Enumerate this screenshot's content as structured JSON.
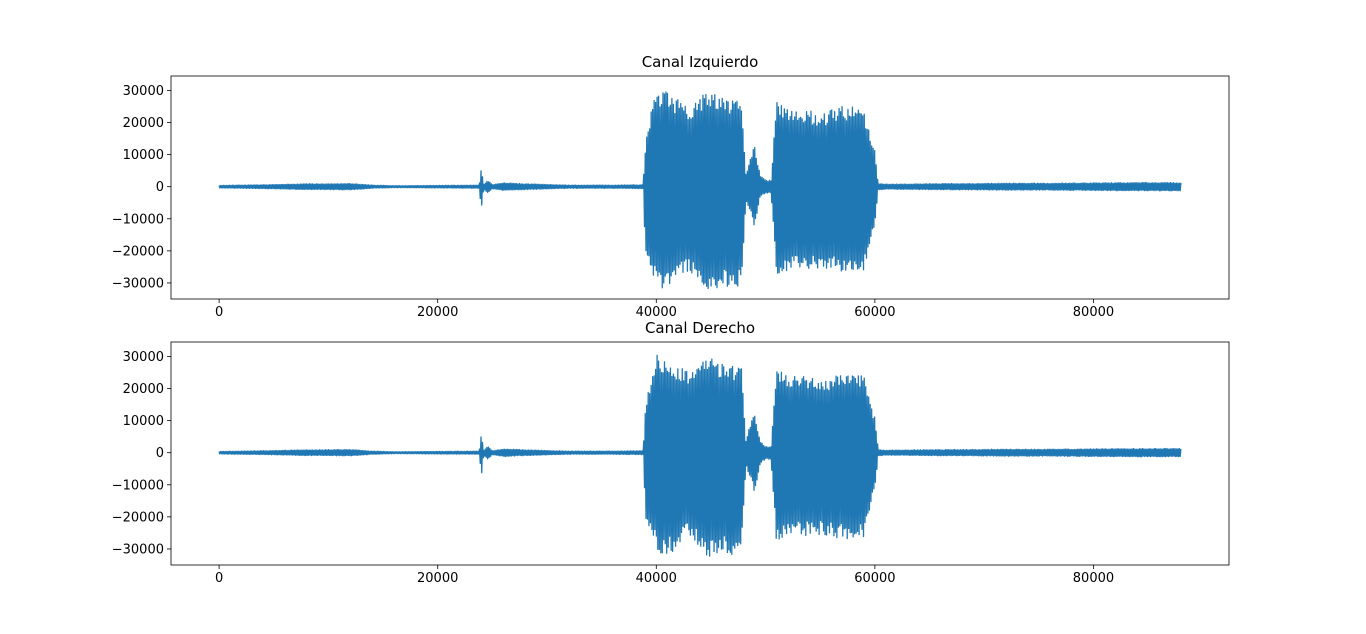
{
  "chart_data": [
    {
      "type": "line",
      "title": "Canal Izquierdo",
      "xlabel": "",
      "ylabel": "",
      "xlim": [
        -4400,
        92400
      ],
      "ylim": [
        -35000,
        34500
      ],
      "xticks": [
        0,
        20000,
        40000,
        60000,
        80000
      ],
      "yticks": [
        -30000,
        -20000,
        -10000,
        0,
        10000,
        20000,
        30000
      ],
      "xtick_labels": [
        "0",
        "20000",
        "40000",
        "60000",
        "80000"
      ],
      "ytick_labels": [
        "−30000",
        "−20000",
        "−10000",
        "0",
        "10000",
        "20000",
        "30000"
      ],
      "grid": false,
      "legend": "none",
      "color": "#1f77b4",
      "series": [
        {
          "x": [
            0,
            4000,
            8000,
            12000,
            14000,
            16000,
            20000,
            23800,
            24000,
            24200,
            24600,
            25000,
            26000,
            28000,
            32000,
            36000,
            38800,
            39000,
            39500,
            40000,
            41000,
            42000,
            43000,
            44000,
            44500,
            45000,
            46000,
            47000,
            47800,
            48200,
            49000,
            49500,
            50000,
            50500,
            51000,
            51500,
            52000,
            53000,
            54000,
            55000,
            56000,
            57000,
            58000,
            59000,
            59500,
            60000,
            60300,
            61000,
            64000,
            68000,
            72000,
            76000,
            80000,
            84000,
            88000
          ],
          "y_max": [
            400,
            600,
            900,
            1000,
            500,
            300,
            400,
            500,
            6200,
            700,
            2000,
            600,
            1200,
            900,
            500,
            500,
            600,
            13000,
            24000,
            30500,
            29500,
            27000,
            25000,
            28000,
            30000,
            29500,
            28000,
            27000,
            26500,
            4000,
            13500,
            3500,
            2000,
            2000,
            26500,
            25500,
            25000,
            24500,
            24000,
            22000,
            24000,
            25000,
            25000,
            24000,
            17000,
            11000,
            1000,
            800,
            900,
            1000,
            1100,
            1100,
            1200,
            1300,
            1300
          ],
          "y_min": [
            -400,
            -600,
            -900,
            -1000,
            -500,
            -300,
            -400,
            -500,
            -7500,
            -800,
            -2000,
            -600,
            -1200,
            -900,
            -500,
            -500,
            -600,
            -21000,
            -25000,
            -30500,
            -32500,
            -29000,
            -26000,
            -30000,
            -33000,
            -32500,
            -31000,
            -32000,
            -30500,
            -4000,
            -12500,
            -3500,
            -2000,
            -2000,
            -28500,
            -27500,
            -26500,
            -26000,
            -26000,
            -25500,
            -26000,
            -27000,
            -27000,
            -26500,
            -18000,
            -12000,
            -1000,
            -800,
            -900,
            -1000,
            -1100,
            -1100,
            -1200,
            -1300,
            -1300
          ]
        }
      ]
    },
    {
      "type": "line",
      "title": "Canal Derecho",
      "xlabel": "",
      "ylabel": "",
      "xlim": [
        -4400,
        92400
      ],
      "ylim": [
        -35000,
        34500
      ],
      "xticks": [
        0,
        20000,
        40000,
        60000,
        80000
      ],
      "yticks": [
        -30000,
        -20000,
        -10000,
        0,
        10000,
        20000,
        30000
      ],
      "xtick_labels": [
        "0",
        "20000",
        "40000",
        "60000",
        "80000"
      ],
      "ytick_labels": [
        "−30000",
        "−20000",
        "−10000",
        "0",
        "10000",
        "20000",
        "30000"
      ],
      "grid": false,
      "legend": "none",
      "color": "#1f77b4",
      "series": [
        {
          "x": [
            0,
            4000,
            8000,
            12000,
            14000,
            16000,
            20000,
            23800,
            24000,
            24200,
            24600,
            25000,
            26000,
            28000,
            32000,
            36000,
            38800,
            39000,
            39500,
            40000,
            41000,
            42000,
            43000,
            44000,
            44500,
            45000,
            46000,
            47000,
            47800,
            48200,
            49000,
            49500,
            50000,
            50500,
            51000,
            51500,
            52000,
            53000,
            54000,
            55000,
            56000,
            57000,
            58000,
            59000,
            59500,
            60000,
            60300,
            61000,
            64000,
            68000,
            72000,
            76000,
            80000,
            84000,
            88000
          ],
          "y_max": [
            400,
            600,
            900,
            1000,
            500,
            300,
            400,
            500,
            6200,
            700,
            2000,
            600,
            1200,
            900,
            500,
            500,
            600,
            13000,
            24000,
            30500,
            29500,
            27000,
            25000,
            28000,
            30000,
            29500,
            28000,
            27000,
            26500,
            4000,
            13500,
            3500,
            2000,
            2000,
            26500,
            25500,
            25000,
            24500,
            24000,
            22000,
            24000,
            25000,
            25000,
            24000,
            17000,
            11000,
            1000,
            800,
            900,
            1000,
            1100,
            1100,
            1200,
            1300,
            1300
          ],
          "y_min": [
            -400,
            -600,
            -900,
            -1000,
            -500,
            -300,
            -400,
            -500,
            -7500,
            -800,
            -2000,
            -600,
            -1200,
            -900,
            -500,
            -500,
            -600,
            -21000,
            -25000,
            -30500,
            -32500,
            -29000,
            -26000,
            -30000,
            -33000,
            -32500,
            -31000,
            -32000,
            -30500,
            -4000,
            -12500,
            -3500,
            -2000,
            -2000,
            -28500,
            -27500,
            -26500,
            -26000,
            -26000,
            -25500,
            -26000,
            -27000,
            -27000,
            -26500,
            -18000,
            -12000,
            -1000,
            -800,
            -900,
            -1000,
            -1100,
            -1100,
            -1200,
            -1300,
            -1300
          ]
        }
      ]
    }
  ]
}
